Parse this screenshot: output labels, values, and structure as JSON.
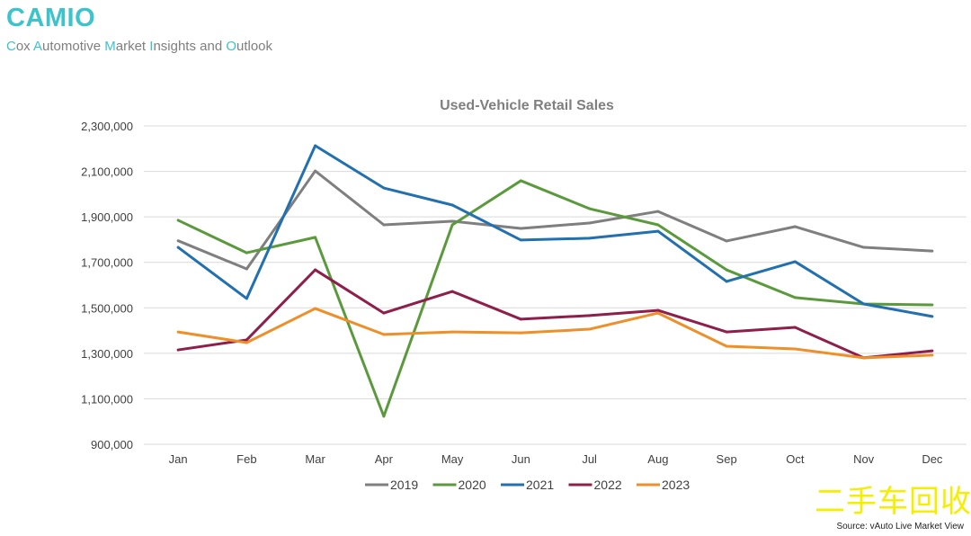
{
  "header": {
    "brand": "CAMIO",
    "tagline_parts": [
      {
        "initial": "C",
        "rest": "ox "
      },
      {
        "initial": "A",
        "rest": "utomotive "
      },
      {
        "initial": "M",
        "rest": "arket "
      },
      {
        "initial": "I",
        "rest": "nsights and "
      },
      {
        "initial": "O",
        "rest": "utlook"
      }
    ]
  },
  "source": "Source: vAuto Live Market View",
  "watermark": "二手车回收",
  "chart_data": {
    "type": "line",
    "title": "Used-Vehicle Retail Sales",
    "xlabel": "",
    "ylabel": "",
    "ylim": [
      900000,
      2300000
    ],
    "yticks": [
      900000,
      1100000,
      1300000,
      1500000,
      1700000,
      1900000,
      2100000,
      2300000
    ],
    "ytick_labels": [
      "900,000",
      "1,100,000",
      "1,300,000",
      "1,500,000",
      "1,700,000",
      "1,900,000",
      "2,100,000",
      "2,300,000"
    ],
    "grid": "horizontal",
    "legend": "bottom",
    "categories": [
      "Jan",
      "Feb",
      "Mar",
      "Apr",
      "May",
      "Jun",
      "Jul",
      "Aug",
      "Sep",
      "Oct",
      "Nov",
      "Dec"
    ],
    "series": [
      {
        "name": "2019",
        "color": "#7f7f7f",
        "values": [
          1795000,
          1671000,
          2102000,
          1865000,
          1881000,
          1849000,
          1873000,
          1924000,
          1794000,
          1857000,
          1766000,
          1750000
        ]
      },
      {
        "name": "2020",
        "color": "#5a9a3c",
        "values": [
          1885000,
          1742000,
          1810000,
          1023000,
          1865000,
          2059000,
          1936000,
          1865000,
          1667000,
          1545000,
          1517000,
          1513000
        ]
      },
      {
        "name": "2021",
        "color": "#2270b0",
        "values": [
          1766000,
          1541000,
          2213000,
          2027000,
          1952000,
          1798000,
          1806000,
          1837000,
          1616000,
          1703000,
          1517000,
          1462000
        ]
      },
      {
        "name": "2022",
        "color": "#8e1f4a",
        "values": [
          1315000,
          1359000,
          1667000,
          1477000,
          1572000,
          1450000,
          1466000,
          1489000,
          1394000,
          1414000,
          1280000,
          1311000
        ]
      },
      {
        "name": "2023",
        "color": "#ee8f2a",
        "values": [
          1394000,
          1347000,
          1497000,
          1383000,
          1394000,
          1390000,
          1406000,
          1477000,
          1331000,
          1319000,
          1280000,
          1292000
        ]
      }
    ]
  }
}
